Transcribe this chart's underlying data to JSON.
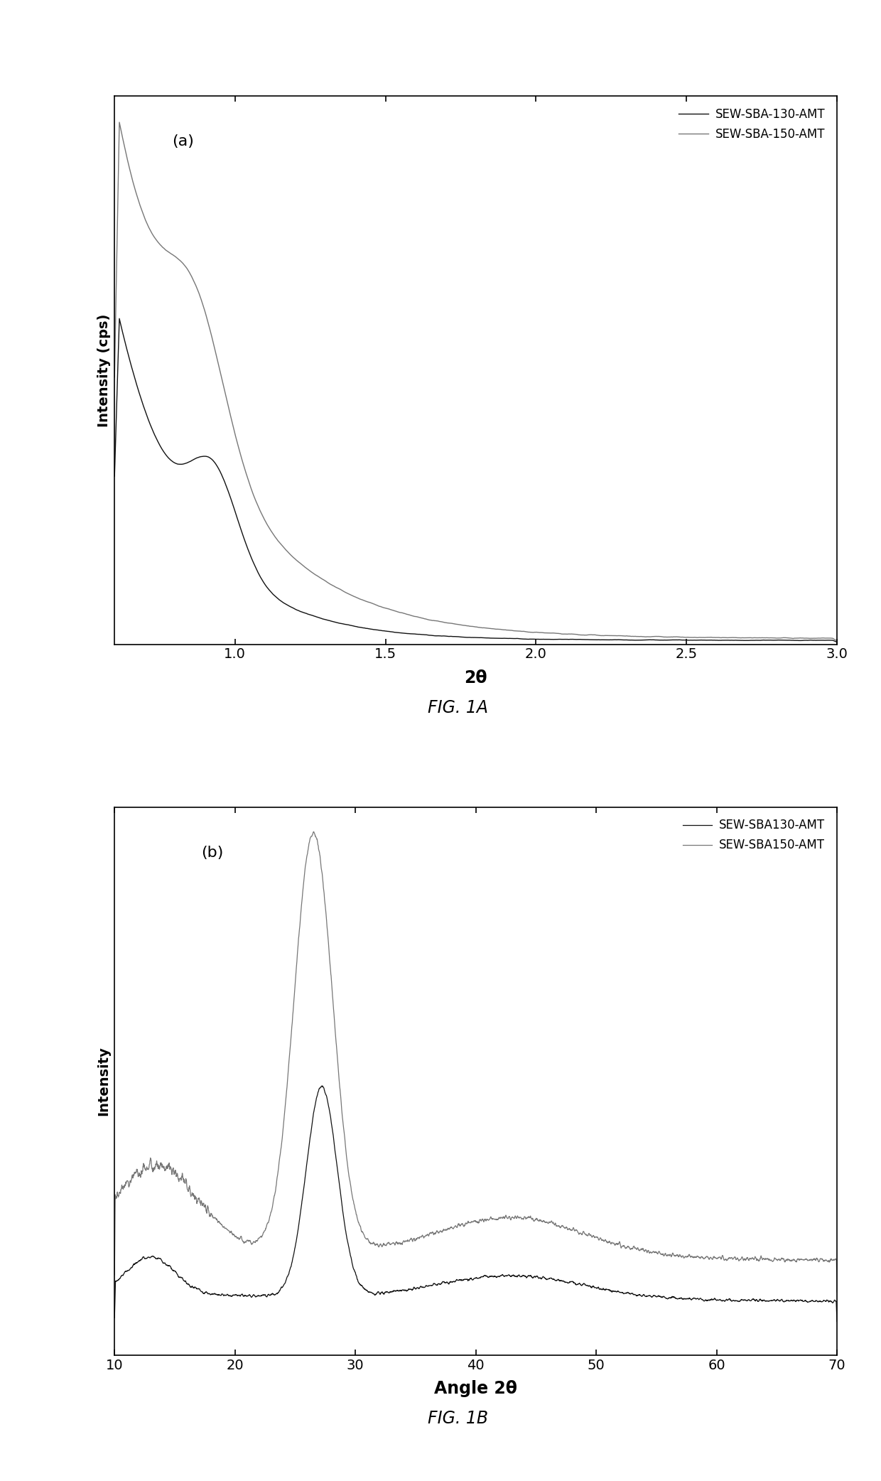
{
  "fig1a": {
    "title": "FIG. 1A",
    "xlabel": "2θ",
    "ylabel": "Intensity (cps)",
    "label_a": "(a)",
    "legend1": "SEW-SBA-130-AMT",
    "legend2": "SEW-SBA-150-AMT",
    "xlim": [
      0.6,
      3.0
    ],
    "xticks": [
      1.0,
      1.5,
      2.0,
      2.5,
      3.0
    ],
    "color1": "#111111",
    "color2": "#777777"
  },
  "fig1b": {
    "title": "FIG. 1B",
    "xlabel": "Angle 2θ",
    "ylabel": "Intensity",
    "label_b": "(b)",
    "legend1": "SEW-SBA130-AMT",
    "legend2": "SEW-SBA150-AMT",
    "xlim": [
      10,
      70
    ],
    "xticks": [
      10,
      20,
      30,
      40,
      50,
      60,
      70
    ],
    "color1": "#111111",
    "color2": "#777777"
  }
}
